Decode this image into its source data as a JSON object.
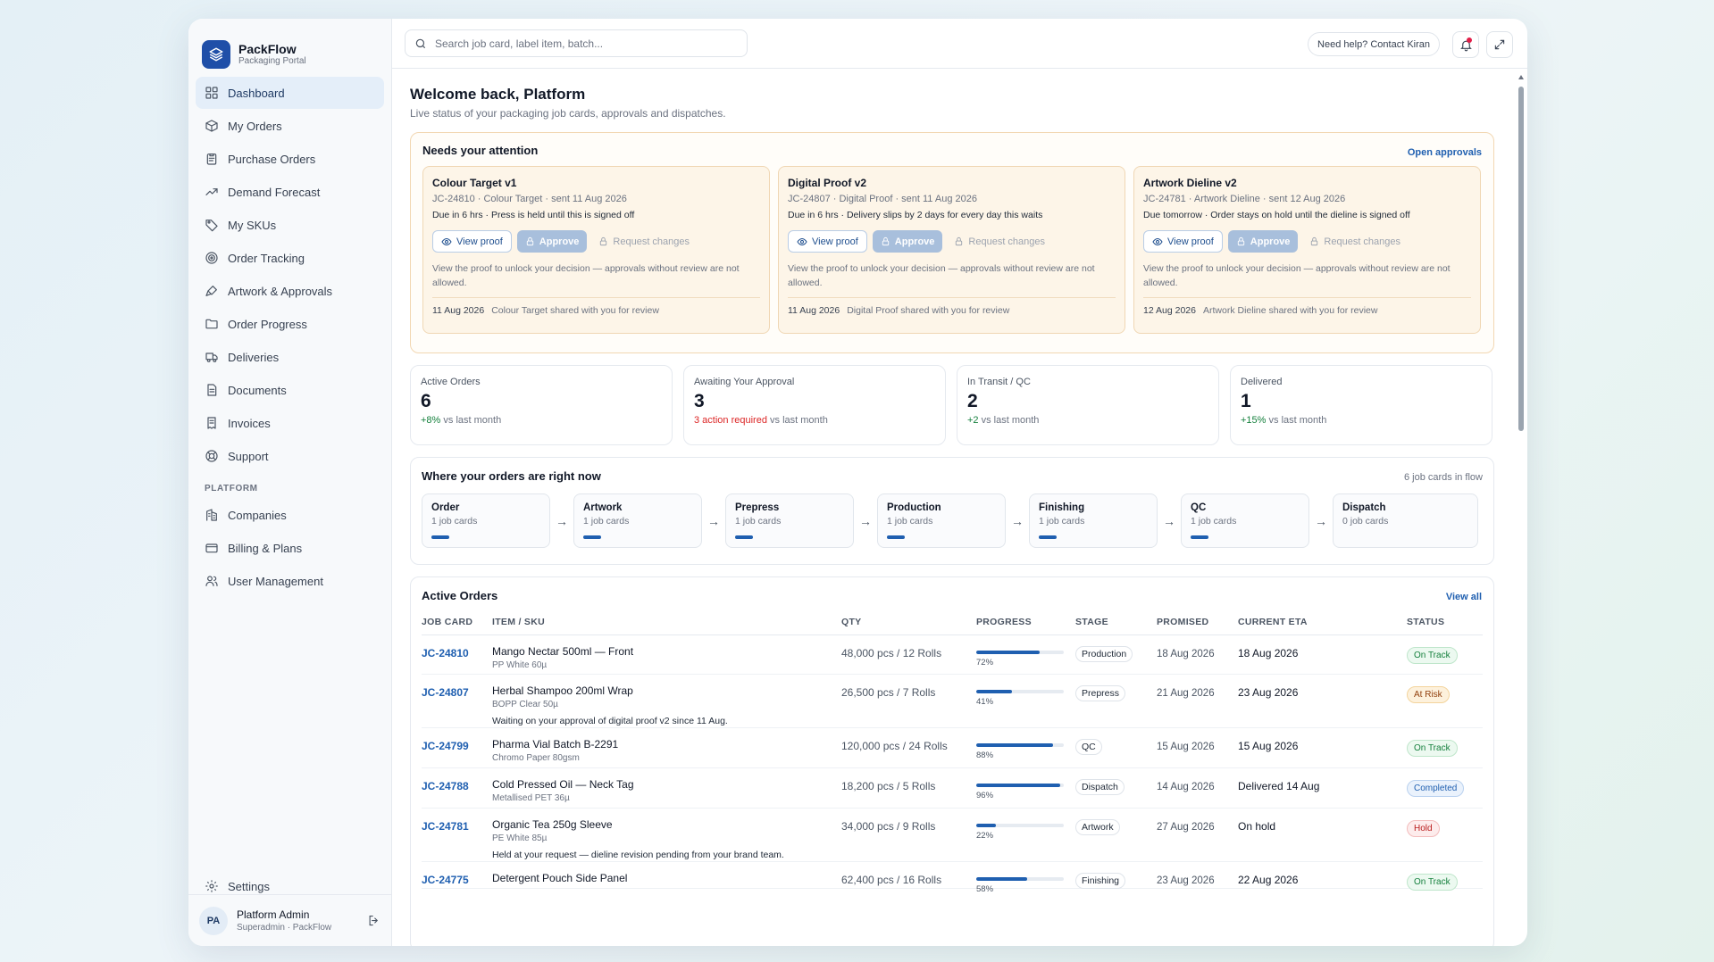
{
  "brand": {
    "name": "PackFlow",
    "subtitle": "Packaging Portal"
  },
  "nav": {
    "items": [
      {
        "label": "Dashboard",
        "icon": "dashboard-icon",
        "active": true
      },
      {
        "label": "My Orders",
        "icon": "box-icon"
      },
      {
        "label": "Purchase Orders",
        "icon": "clipboard-icon"
      },
      {
        "label": "Demand Forecast",
        "icon": "trend-icon"
      },
      {
        "label": "My SKUs",
        "icon": "tag-icon"
      },
      {
        "label": "Order Tracking",
        "icon": "target-icon"
      },
      {
        "label": "Artwork & Approvals",
        "icon": "brush-icon"
      },
      {
        "label": "Order Progress",
        "icon": "folder-icon"
      },
      {
        "label": "Deliveries",
        "icon": "truck-icon"
      },
      {
        "label": "Documents",
        "icon": "document-icon"
      },
      {
        "label": "Invoices",
        "icon": "invoice-icon"
      },
      {
        "label": "Support",
        "icon": "lifebuoy-icon"
      }
    ],
    "section_label": "PLATFORM",
    "platform_items": [
      {
        "label": "Companies",
        "icon": "building-icon"
      },
      {
        "label": "Billing & Plans",
        "icon": "card-icon"
      },
      {
        "label": "User Management",
        "icon": "users-icon"
      }
    ],
    "settings_label": "Settings"
  },
  "user": {
    "initials": "PA",
    "name": "Platform Admin",
    "role": "Superadmin · PackFlow"
  },
  "topbar": {
    "search_placeholder": "Search job card, label item, batch...",
    "help_label": "Need help? Contact Kiran"
  },
  "welcome": {
    "title": "Welcome back, Platform",
    "subtitle": "Live status of your packaging job cards, approvals and dispatches."
  },
  "attention": {
    "title": "Needs your attention",
    "link": "Open approvals",
    "view_label": "View proof",
    "approve_label": "Approve",
    "request_label": "Request changes",
    "cards": [
      {
        "title": "Colour Target v1",
        "meta": "JC-24810 · Colour Target · sent 11 Aug 2026",
        "due": "Due in 6 hrs · Press is held until this is signed off",
        "note": "View the proof to unlock your decision — approvals without review are not allowed.",
        "date": "11 Aug 2026",
        "foot": "Colour Target shared with you for review"
      },
      {
        "title": "Digital Proof v2",
        "meta": "JC-24807 · Digital Proof · sent 11 Aug 2026",
        "due": "Due in 6 hrs · Delivery slips by 2 days for every day this waits",
        "note": "View the proof to unlock your decision — approvals without review are not allowed.",
        "date": "11 Aug 2026",
        "foot": "Digital Proof shared with you for review"
      },
      {
        "title": "Artwork Dieline v2",
        "meta": "JC-24781 · Artwork Dieline · sent 12 Aug 2026",
        "due": "Due tomorrow · Order stays on hold until the dieline is signed off",
        "note": "View the proof to unlock your decision — approvals without review are not allowed.",
        "date": "12 Aug 2026",
        "foot": "Artwork Dieline shared with you for review"
      }
    ]
  },
  "stats": [
    {
      "label": "Active Orders",
      "value": "6",
      "trend_highlight": "+8%",
      "trend_rest": " vs last month",
      "tone": "up"
    },
    {
      "label": "Awaiting Your Approval",
      "value": "3",
      "trend_highlight": "3 action required",
      "trend_rest": " vs last month",
      "tone": "warn"
    },
    {
      "label": "In Transit / QC",
      "value": "2",
      "trend_highlight": "+2",
      "trend_rest": " vs last month",
      "tone": "up"
    },
    {
      "label": "Delivered",
      "value": "1",
      "trend_highlight": "+15%",
      "trend_rest": " vs last month",
      "tone": "up"
    }
  ],
  "flow": {
    "title": "Where your orders are right now",
    "count": "6 job cards in flow",
    "stages": [
      {
        "name": "Order",
        "count": "1 job cards",
        "active": true
      },
      {
        "name": "Artwork",
        "count": "1 job cards",
        "active": true
      },
      {
        "name": "Prepress",
        "count": "1 job cards",
        "active": true
      },
      {
        "name": "Production",
        "count": "1 job cards",
        "active": true
      },
      {
        "name": "Finishing",
        "count": "1 job cards",
        "active": true
      },
      {
        "name": "QC",
        "count": "1 job cards",
        "active": true
      },
      {
        "name": "Dispatch",
        "count": "0 job cards",
        "active": false
      }
    ]
  },
  "orders": {
    "title": "Active Orders",
    "link": "View all",
    "columns": [
      "JOB CARD",
      "ITEM / SKU",
      "QTY",
      "PROGRESS",
      "STAGE",
      "PROMISED",
      "CURRENT ETA",
      "STATUS"
    ],
    "rows": [
      {
        "job": "JC-24810",
        "item": "Mango Nectar 500ml — Front",
        "sku": "PP White 60µ",
        "note": "",
        "qty": "48,000 pcs / 12 Rolls",
        "progress": 72,
        "progress_label": "72%",
        "stage": "Production",
        "promised": "18 Aug 2026",
        "eta": "18 Aug 2026",
        "status": "On Track",
        "status_tone": "green"
      },
      {
        "job": "JC-24807",
        "item": "Herbal Shampoo 200ml Wrap",
        "sku": "BOPP Clear 50µ",
        "note": "Waiting on your approval of digital proof v2 since 11 Aug.",
        "qty": "26,500 pcs / 7 Rolls",
        "progress": 41,
        "progress_label": "41%",
        "stage": "Prepress",
        "promised": "21 Aug 2026",
        "eta": "23 Aug 2026",
        "status": "At Risk",
        "status_tone": "amber"
      },
      {
        "job": "JC-24799",
        "item": "Pharma Vial Batch B-2291",
        "sku": "Chromo Paper 80gsm",
        "note": "",
        "qty": "120,000 pcs / 24 Rolls",
        "progress": 88,
        "progress_label": "88%",
        "stage": "QC",
        "promised": "15 Aug 2026",
        "eta": "15 Aug 2026",
        "status": "On Track",
        "status_tone": "green"
      },
      {
        "job": "JC-24788",
        "item": "Cold Pressed Oil — Neck Tag",
        "sku": "Metallised PET 36µ",
        "note": "",
        "qty": "18,200 pcs / 5 Rolls",
        "progress": 96,
        "progress_label": "96%",
        "stage": "Dispatch",
        "promised": "14 Aug 2026",
        "eta": "Delivered 14 Aug",
        "status": "Completed",
        "status_tone": "blue"
      },
      {
        "job": "JC-24781",
        "item": "Organic Tea 250g Sleeve",
        "sku": "PE White 85µ",
        "note": "Held at your request — dieline revision pending from your brand team.",
        "qty": "34,000 pcs / 9 Rolls",
        "progress": 22,
        "progress_label": "22%",
        "stage": "Artwork",
        "promised": "27 Aug 2026",
        "eta": "On hold",
        "status": "Hold",
        "status_tone": "red"
      },
      {
        "job": "JC-24775",
        "item": "Detergent Pouch Side Panel",
        "sku": "",
        "note": "",
        "qty": "62,400 pcs / 16 Rolls",
        "progress": 58,
        "progress_label": "58%",
        "stage": "Finishing",
        "promised": "23 Aug 2026",
        "eta": "22 Aug 2026",
        "status": "On Track",
        "status_tone": "green"
      }
    ]
  },
  "colors": {
    "accent": "#1f5fb0",
    "sidebar_active": "#e4eef9",
    "attention_bg": "#fdf5e8"
  }
}
